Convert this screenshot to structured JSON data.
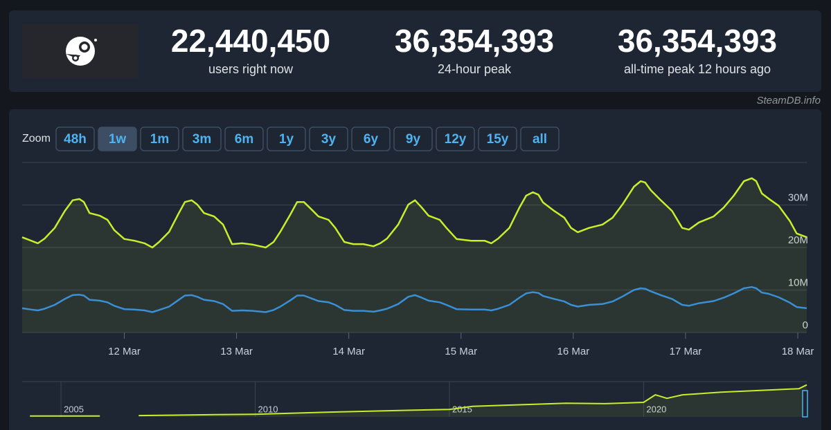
{
  "header": {
    "stats": [
      {
        "value": "22,440,450",
        "label": "users right now"
      },
      {
        "value": "36,354,393",
        "label": "24-hour peak"
      },
      {
        "value": "36,354,393",
        "label": "all-time peak 12 hours ago"
      }
    ]
  },
  "watermark": "SteamDB.info",
  "zoom": {
    "label": "Zoom",
    "buttons": [
      "48h",
      "1w",
      "1m",
      "3m",
      "6m",
      "1y",
      "3y",
      "6y",
      "9y",
      "12y",
      "15y",
      "all"
    ],
    "active": 1
  },
  "chart_data": [
    {
      "type": "line",
      "x": [
        11.09,
        11.17,
        11.23,
        11.29,
        11.38,
        11.47,
        11.54,
        11.6,
        11.64,
        11.69,
        11.78,
        11.85,
        11.91,
        12.0,
        12.09,
        12.18,
        12.25,
        12.31,
        12.4,
        12.48,
        12.54,
        12.6,
        12.65,
        12.71,
        12.8,
        12.88,
        12.96,
        13.05,
        13.14,
        13.26,
        13.33,
        13.39,
        13.48,
        13.54,
        13.6,
        13.67,
        13.73,
        13.82,
        13.88,
        13.96,
        14.04,
        14.13,
        14.22,
        14.28,
        14.34,
        14.44,
        14.53,
        14.59,
        14.65,
        14.71,
        14.81,
        14.87,
        14.96,
        15.09,
        15.21,
        15.27,
        15.33,
        15.43,
        15.52,
        15.58,
        15.64,
        15.69,
        15.73,
        15.83,
        15.92,
        15.98,
        16.04,
        16.14,
        16.26,
        16.35,
        16.44,
        16.54,
        16.6,
        16.64,
        16.69,
        16.78,
        16.88,
        16.97,
        17.03,
        17.12,
        17.25,
        17.34,
        17.43,
        17.52,
        17.59,
        17.63,
        17.68,
        17.74,
        17.83,
        17.93,
        17.99,
        18.08
      ],
      "xlim": [
        11.09,
        18.08
      ],
      "xticks": [
        {
          "value": 12,
          "label": "12 Mar"
        },
        {
          "value": 13,
          "label": "13 Mar"
        },
        {
          "value": 14,
          "label": "14 Mar"
        },
        {
          "value": 15,
          "label": "15 Mar"
        },
        {
          "value": 16,
          "label": "16 Mar"
        },
        {
          "value": 17,
          "label": "17 Mar"
        },
        {
          "value": 18,
          "label": "18 Mar"
        }
      ],
      "ylim": [
        0,
        40
      ],
      "yticks": [
        0,
        {
          "value": 10,
          "label": "10M"
        },
        {
          "value": 20,
          "label": "20M"
        },
        {
          "value": 30,
          "label": "30M"
        }
      ],
      "grid": true,
      "series": [
        {
          "color": "#c9ee2b",
          "fill": true,
          "values": [
            22.4,
            21.6,
            21.0,
            22.1,
            24.6,
            28.6,
            31.1,
            31.4,
            30.7,
            28.1,
            27.5,
            26.5,
            24.1,
            22.0,
            21.6,
            21.0,
            20.0,
            21.3,
            23.7,
            27.8,
            30.7,
            31.1,
            30.1,
            28.1,
            27.3,
            25.4,
            20.8,
            21.0,
            20.7,
            20.0,
            21.3,
            23.7,
            27.8,
            30.7,
            30.7,
            28.9,
            27.3,
            26.5,
            24.6,
            21.3,
            20.8,
            20.8,
            20.3,
            21.0,
            22.1,
            25.4,
            30.1,
            31.1,
            29.4,
            27.5,
            26.5,
            24.6,
            22.0,
            21.6,
            21.6,
            21.0,
            22.1,
            24.6,
            29.4,
            32.2,
            33.0,
            32.4,
            30.6,
            28.6,
            27.0,
            24.6,
            23.6,
            24.6,
            25.4,
            27.0,
            30.2,
            34.3,
            35.6,
            35.3,
            33.5,
            31.1,
            28.6,
            24.6,
            24.2,
            25.9,
            27.3,
            29.4,
            32.2,
            35.6,
            36.3,
            35.6,
            32.7,
            31.5,
            29.8,
            26.2,
            23.3,
            22.4
          ]
        },
        {
          "color": "#3b8fd4",
          "fill": false,
          "values": [
            5.7,
            5.4,
            5.2,
            5.6,
            6.5,
            7.9,
            8.8,
            8.9,
            8.7,
            7.7,
            7.5,
            7.1,
            6.3,
            5.5,
            5.4,
            5.2,
            4.8,
            5.3,
            6.1,
            7.6,
            8.7,
            8.8,
            8.4,
            7.7,
            7.4,
            6.7,
            5.1,
            5.2,
            5.1,
            4.8,
            5.3,
            6.1,
            7.6,
            8.7,
            8.7,
            8.0,
            7.4,
            7.1,
            6.5,
            5.3,
            5.1,
            5.1,
            4.9,
            5.2,
            5.6,
            6.7,
            8.4,
            8.8,
            8.2,
            7.5,
            7.1,
            6.5,
            5.5,
            5.4,
            5.4,
            5.2,
            5.6,
            6.5,
            8.2,
            9.2,
            9.5,
            9.3,
            8.6,
            7.9,
            7.3,
            6.5,
            6.1,
            6.5,
            6.7,
            7.3,
            8.5,
            10.0,
            10.4,
            10.3,
            9.7,
            8.8,
            7.9,
            6.5,
            6.3,
            6.9,
            7.4,
            8.2,
            9.2,
            10.4,
            10.7,
            10.4,
            9.4,
            9.1,
            8.3,
            7.0,
            6.0,
            5.7
          ]
        }
      ]
    },
    {
      "type": "line",
      "x": [
        2004.2,
        2006.0,
        2006.5,
        2007.0,
        2009.0,
        2010.0,
        2012.0,
        2014.0,
        2015.0,
        2015.6,
        2017.0,
        2018.0,
        2019.0,
        2020.0,
        2020.3,
        2020.6,
        2021.0,
        2022.0,
        2023.0,
        2024.0,
        2024.2
      ],
      "xlim": [
        2004,
        2024.2
      ],
      "xticks": [
        2005,
        2010,
        2015,
        2020
      ],
      "ylim": [
        0,
        40
      ],
      "series": [
        {
          "color": "#c9ee2b",
          "fill": true,
          "values": [
            1.0,
            1.0,
            null,
            1.5,
            2.5,
            3.0,
            5.5,
            7.5,
            8.5,
            12.0,
            14.0,
            15.5,
            15.0,
            16.5,
            25.0,
            21.0,
            25.0,
            28.0,
            30.0,
            32.0,
            36.3
          ]
        }
      ]
    }
  ]
}
